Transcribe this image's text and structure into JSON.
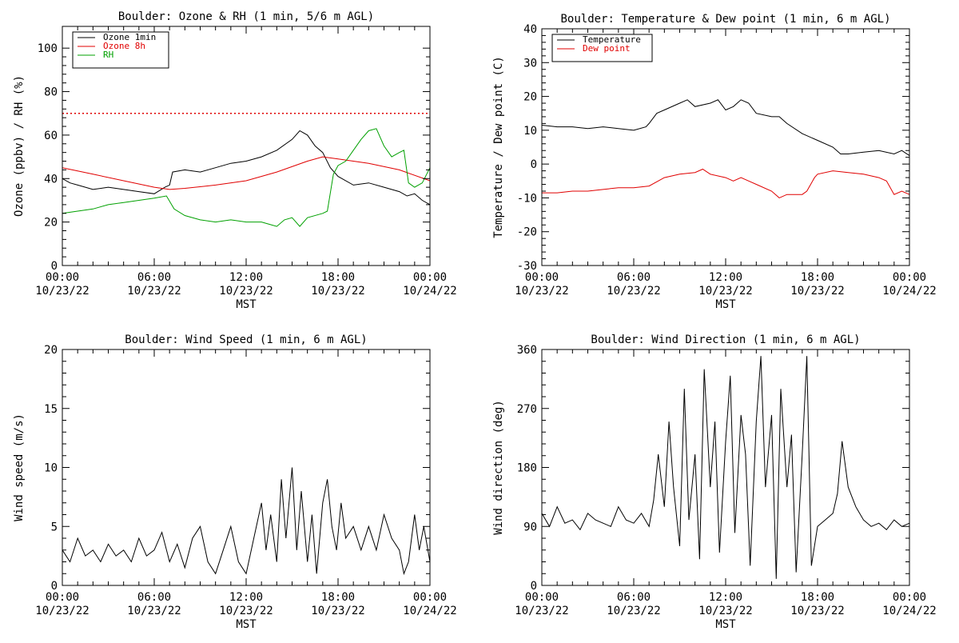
{
  "chart_data": [
    {
      "id": "ozone-rh",
      "type": "line",
      "title": "Boulder: Ozone & RH (1 min, 5/6 m AGL)",
      "ylabel": "Ozone (ppbv) / RH (%)",
      "xlabel": "MST",
      "ylim": [
        0,
        110
      ],
      "yticks": [
        "0",
        "20",
        "40",
        "60",
        "80",
        "100"
      ],
      "yvals": [
        0,
        20,
        40,
        60,
        80,
        100
      ],
      "xlim": [
        0,
        24
      ],
      "xticks": [
        {
          "time": "00:00",
          "date": "10/23/22"
        },
        {
          "time": "06:00",
          "date": "10/23/22"
        },
        {
          "time": "12:00",
          "date": "10/23/22"
        },
        {
          "time": "18:00",
          "date": "10/23/22"
        },
        {
          "time": "00:00",
          "date": "10/24/22"
        }
      ],
      "reference_line": {
        "y": 70,
        "color": "#e00000",
        "style": "dotted"
      },
      "legend": {
        "position": "top-left"
      },
      "series": [
        {
          "name": "Ozone 1min",
          "color": "#000000",
          "x": [
            0,
            0.5,
            1,
            1.5,
            2,
            3,
            4,
            5,
            6,
            6.7,
            7,
            7.2,
            8,
            9,
            10,
            11,
            12,
            13,
            14,
            15,
            15.5,
            16,
            16.5,
            17,
            17.5,
            18,
            19,
            20,
            21,
            22,
            22.5,
            23,
            23.5,
            24
          ],
          "y": [
            40,
            38,
            37,
            36,
            35,
            36,
            35,
            34,
            33,
            36,
            37,
            43,
            44,
            43,
            45,
            47,
            48,
            50,
            53,
            58,
            62,
            60,
            55,
            52,
            45,
            41,
            37,
            38,
            36,
            34,
            32,
            33,
            30,
            28
          ]
        },
        {
          "name": "Ozone 8h",
          "color": "#e00000",
          "x": [
            0,
            2,
            4,
            6,
            7,
            8,
            10,
            12,
            14,
            16,
            17,
            18,
            20,
            22,
            24
          ],
          "y": [
            45,
            42,
            39,
            36,
            35,
            35.5,
            37,
            39,
            43,
            48,
            50,
            49,
            47,
            44,
            39
          ]
        },
        {
          "name": "RH",
          "color": "#00a000",
          "x": [
            0,
            1,
            2,
            3,
            4,
            5,
            6,
            6.8,
            7.3,
            8,
            9,
            10,
            11,
            12,
            13,
            13.5,
            14,
            14.5,
            15,
            15.5,
            16,
            17,
            17.3,
            17.7,
            18,
            18.5,
            19,
            19.5,
            20,
            20.5,
            21,
            21.5,
            22,
            22.3,
            22.6,
            23,
            23.5,
            24
          ],
          "y": [
            24,
            25,
            26,
            28,
            29,
            30,
            31,
            32,
            26,
            23,
            21,
            20,
            21,
            20,
            20,
            19,
            18,
            21,
            22,
            18,
            22,
            24,
            25,
            42,
            46,
            48,
            53,
            58,
            62,
            63,
            55,
            50,
            52,
            53,
            38,
            36,
            38,
            45
          ]
        }
      ]
    },
    {
      "id": "temp-dew",
      "type": "line",
      "title": "Boulder: Temperature & Dew point (1 min, 6 m AGL)",
      "ylabel": "Temperature / Dew point (C)",
      "xlabel": "MST",
      "ylim": [
        -30,
        40
      ],
      "yticks": [
        "-30",
        "-20",
        "-10",
        "0",
        "10",
        "20",
        "30",
        "40"
      ],
      "yvals": [
        -30,
        -20,
        -10,
        0,
        10,
        20,
        30,
        40
      ],
      "xlim": [
        0,
        24
      ],
      "xticks": [
        {
          "time": "00:00",
          "date": "10/23/22"
        },
        {
          "time": "06:00",
          "date": "10/23/22"
        },
        {
          "time": "12:00",
          "date": "10/23/22"
        },
        {
          "time": "18:00",
          "date": "10/23/22"
        },
        {
          "time": "00:00",
          "date": "10/24/22"
        }
      ],
      "legend": {
        "position": "top-left"
      },
      "series": [
        {
          "name": "Temperature",
          "color": "#000000",
          "x": [
            0,
            1,
            2,
            3,
            4,
            5,
            6,
            6.8,
            7,
            7.5,
            8,
            9,
            9.5,
            10,
            11,
            11.5,
            12,
            12.5,
            13,
            13.5,
            14,
            15,
            15.5,
            16,
            17,
            18,
            19,
            19.5,
            20,
            21,
            22,
            23,
            23.5,
            24
          ],
          "y": [
            11.5,
            11,
            11,
            10.5,
            11,
            10.5,
            10,
            11,
            12,
            15,
            16,
            18,
            19,
            17,
            18,
            19,
            16,
            17,
            19,
            18,
            15,
            14,
            14,
            12,
            9,
            7,
            5,
            3,
            3,
            3.5,
            4,
            3,
            4,
            2.5
          ]
        },
        {
          "name": "Dew point",
          "color": "#e00000",
          "x": [
            0,
            1,
            2,
            3,
            4,
            5,
            6,
            7,
            8,
            9,
            10,
            10.5,
            11,
            12,
            12.5,
            13,
            13.5,
            14,
            15,
            15.5,
            16,
            17,
            17.3,
            17.8,
            18,
            19,
            20,
            21,
            22,
            22.5,
            23,
            23.5,
            24
          ],
          "y": [
            -8.5,
            -8.5,
            -8,
            -8,
            -7.5,
            -7,
            -7,
            -6.5,
            -4,
            -3,
            -2.5,
            -1.5,
            -3,
            -4,
            -5,
            -4,
            -5,
            -6,
            -8,
            -10,
            -9,
            -9,
            -8,
            -4,
            -3,
            -2,
            -2.5,
            -3,
            -4,
            -5,
            -9,
            -8,
            -9
          ]
        }
      ]
    },
    {
      "id": "wind-speed",
      "type": "line",
      "title": "Boulder: Wind Speed (1 min, 6 m AGL)",
      "ylabel": "Wind speed (m/s)",
      "xlabel": "MST",
      "ylim": [
        0,
        20
      ],
      "yticks": [
        "0",
        "5",
        "10",
        "15",
        "20"
      ],
      "yvals": [
        0,
        5,
        10,
        15,
        20
      ],
      "xlim": [
        0,
        24
      ],
      "xticks": [
        {
          "time": "00:00",
          "date": "10/23/22"
        },
        {
          "time": "06:00",
          "date": "10/23/22"
        },
        {
          "time": "12:00",
          "date": "10/23/22"
        },
        {
          "time": "18:00",
          "date": "10/23/22"
        },
        {
          "time": "00:00",
          "date": "10/24/22"
        }
      ],
      "series": [
        {
          "name": "",
          "color": "#000000",
          "x": [
            0,
            0.5,
            1,
            1.5,
            2,
            2.5,
            3,
            3.5,
            4,
            4.5,
            5,
            5.5,
            6,
            6.5,
            7,
            7.5,
            8,
            8.5,
            9,
            9.5,
            10,
            10.5,
            11,
            11.5,
            12,
            12.5,
            13,
            13.3,
            13.6,
            14,
            14.3,
            14.6,
            15,
            15.3,
            15.6,
            16,
            16.3,
            16.6,
            17,
            17.3,
            17.6,
            17.9,
            18.2,
            18.5,
            19,
            19.5,
            20,
            20.5,
            21,
            21.5,
            22,
            22.3,
            22.6,
            23,
            23.3,
            23.6,
            24
          ],
          "y": [
            3,
            2,
            4,
            2.5,
            3,
            2,
            3.5,
            2.5,
            3,
            2,
            4,
            2.5,
            3,
            4.5,
            2,
            3.5,
            1.5,
            4,
            5,
            2,
            1,
            3,
            5,
            2,
            1,
            4,
            7,
            3,
            6,
            2,
            9,
            4,
            10,
            3,
            8,
            2,
            6,
            1,
            7,
            9,
            5,
            3,
            7,
            4,
            5,
            3,
            5,
            3,
            6,
            4,
            3,
            1,
            2,
            6,
            3,
            5,
            2
          ]
        }
      ]
    },
    {
      "id": "wind-dir",
      "type": "line",
      "title": "Boulder: Wind Direction (1 min, 6 m AGL)",
      "ylabel": "Wind direction (deg)",
      "xlabel": "MST",
      "ylim": [
        0,
        360
      ],
      "yticks": [
        "0",
        "90",
        "180",
        "270",
        "360"
      ],
      "yvals": [
        0,
        90,
        180,
        270,
        360
      ],
      "xlim": [
        0,
        24
      ],
      "xticks": [
        {
          "time": "00:00",
          "date": "10/23/22"
        },
        {
          "time": "06:00",
          "date": "10/23/22"
        },
        {
          "time": "12:00",
          "date": "10/23/22"
        },
        {
          "time": "18:00",
          "date": "10/23/22"
        },
        {
          "time": "00:00",
          "date": "10/24/22"
        }
      ],
      "series": [
        {
          "name": "",
          "color": "#000000",
          "x": [
            0,
            0.5,
            1,
            1.5,
            2,
            2.5,
            3,
            3.5,
            4,
            4.5,
            5,
            5.5,
            6,
            6.5,
            7,
            7.3,
            7.6,
            8,
            8.3,
            8.6,
            9,
            9.3,
            9.6,
            10,
            10.3,
            10.6,
            11,
            11.3,
            11.6,
            12,
            12.3,
            12.6,
            13,
            13.3,
            13.6,
            14,
            14.3,
            14.6,
            15,
            15.3,
            15.6,
            16,
            16.3,
            16.6,
            17,
            17.3,
            17.6,
            18,
            18.5,
            19,
            19.3,
            19.6,
            20,
            20.5,
            21,
            21.5,
            22,
            22.5,
            23,
            23.5,
            24
          ],
          "y": [
            110,
            90,
            120,
            95,
            100,
            85,
            110,
            100,
            95,
            90,
            120,
            100,
            95,
            110,
            90,
            130,
            200,
            120,
            250,
            150,
            60,
            300,
            100,
            200,
            40,
            330,
            150,
            250,
            50,
            220,
            320,
            80,
            260,
            200,
            30,
            250,
            350,
            150,
            260,
            10,
            300,
            150,
            230,
            20,
            200,
            350,
            30,
            90,
            100,
            110,
            140,
            220,
            150,
            120,
            100,
            90,
            95,
            85,
            100,
            90,
            95
          ]
        }
      ]
    }
  ]
}
